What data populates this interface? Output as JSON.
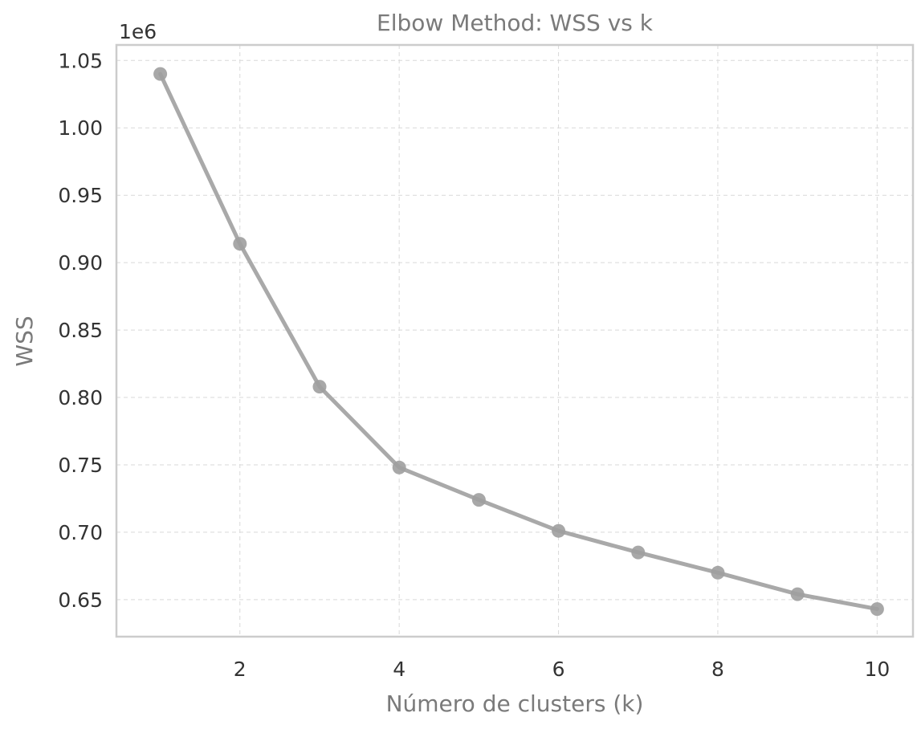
{
  "chart_data": {
    "type": "line",
    "title": "Elbow Method: WSS vs k",
    "xlabel": "Número de clusters (k)",
    "ylabel": "WSS",
    "y_offset_label": "1e6",
    "x": [
      1,
      2,
      3,
      4,
      5,
      6,
      7,
      8,
      9,
      10
    ],
    "series": [
      {
        "values": [
          1040000,
          914000,
          808000,
          748000,
          724000,
          701000,
          685000,
          670000,
          654000,
          643000
        ]
      }
    ],
    "xlim": [
      0.45,
      10.45
    ],
    "ylim": [
      0.6225,
      1.0615
    ],
    "x_ticks": [
      2,
      4,
      6,
      8,
      10
    ],
    "x_tick_labels": [
      "2",
      "4",
      "6",
      "8",
      "10"
    ],
    "y_ticks": [
      0.65,
      0.7,
      0.75,
      0.8,
      0.85,
      0.9,
      0.95,
      1.0,
      1.05
    ],
    "y_tick_labels": [
      "0.65",
      "0.70",
      "0.75",
      "0.80",
      "0.85",
      "0.90",
      "0.95",
      "1.00",
      "1.05"
    ],
    "grid": true,
    "line_color": "#a9a9a9",
    "marker_color": "#9e9e9e"
  }
}
